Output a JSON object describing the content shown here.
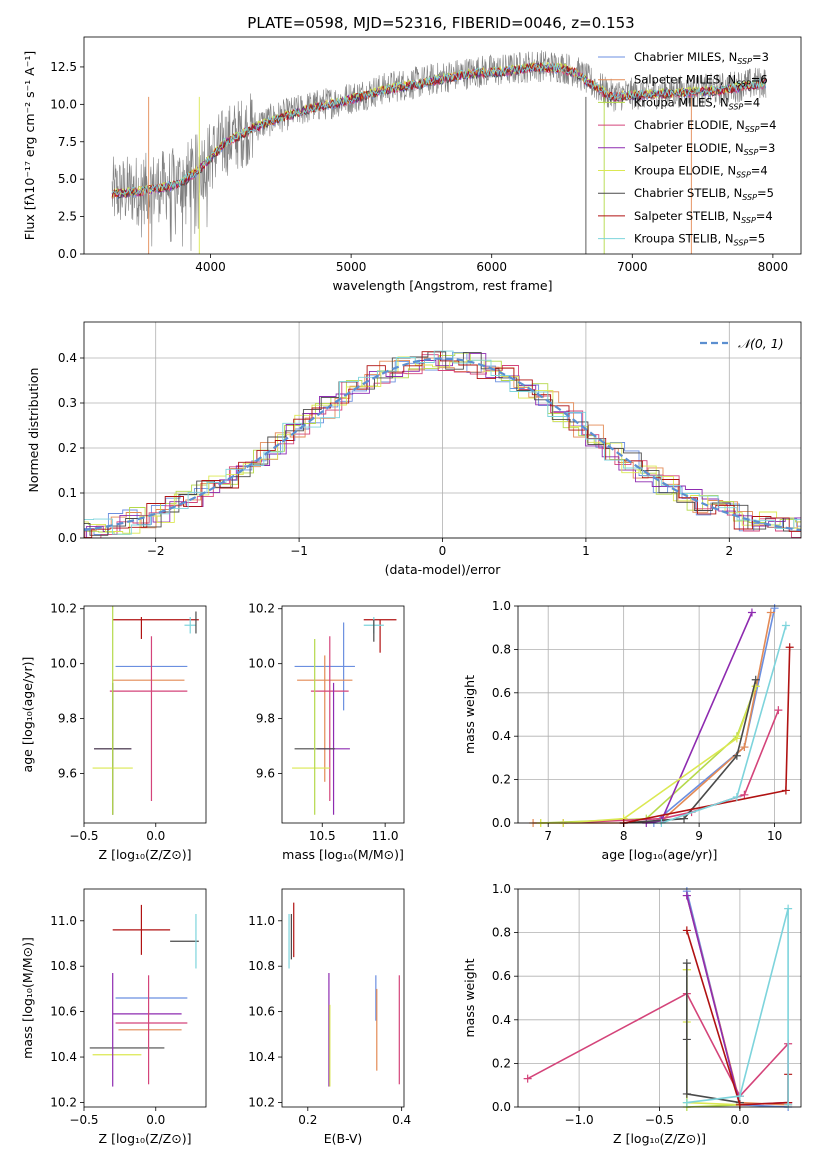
{
  "colors": {
    "Chabrier MILES": "#6b8fe0",
    "Salpeter MILES": "#e38a55",
    "Kroupa MILES": "#b5d94a",
    "Chabrier ELODIE": "#d4447a",
    "Salpeter ELODIE": "#8e2bb0",
    "Kroupa ELODIE": "#dbe852",
    "Chabrier STELIB": "#4a4a4a",
    "Salpeter STELIB": "#b01212",
    "Kroupa STELIB": "#7dd4dc"
  },
  "chart_data": [
    {
      "id": "spectrum",
      "type": "line",
      "title": "PLATE=0598, MJD=52316, FIBERID=0046, z=0.153",
      "xlabel": "wavelength [Angstrom, rest frame]",
      "ylabel": "Flux [fλ10⁻¹⁷ erg cm⁻² s⁻¹ A⁻¹]",
      "xlim": [
        3100,
        8200
      ],
      "ylim": [
        0,
        14.5
      ],
      "xticks": [
        4000,
        5000,
        6000,
        7000,
        8000
      ],
      "yticks": [
        0.0,
        2.5,
        5.0,
        7.5,
        10.0,
        12.5
      ],
      "legend_position": "top-right",
      "legend": [
        {
          "label": "Chabrier MILES, N",
          "sub": "SSP",
          "suffix": "=3"
        },
        {
          "label": "Salpeter MILES, N",
          "sub": "SSP",
          "suffix": "=6"
        },
        {
          "label": "Kroupa MILES, N",
          "sub": "SSP",
          "suffix": "=4"
        },
        {
          "label": "Chabrier ELODIE, N",
          "sub": "SSP",
          "suffix": "=4"
        },
        {
          "label": "Salpeter ELODIE, N",
          "sub": "SSP",
          "suffix": "=3"
        },
        {
          "label": "Kroupa ELODIE, N",
          "sub": "SSP",
          "suffix": "=4"
        },
        {
          "label": "Chabrier STELIB, N",
          "sub": "SSP",
          "suffix": "=5"
        },
        {
          "label": "Salpeter STELIB, N",
          "sub": "SSP",
          "suffix": "=4"
        },
        {
          "label": "Kroupa STELIB, N",
          "sub": "SSP",
          "suffix": "=5"
        }
      ],
      "continuum": [
        [
          3300,
          4.1
        ],
        [
          3500,
          4.3
        ],
        [
          3700,
          4.6
        ],
        [
          3800,
          4.9
        ],
        [
          3950,
          6.0
        ],
        [
          4100,
          7.5
        ],
        [
          4300,
          8.5
        ],
        [
          4500,
          9.2
        ],
        [
          4700,
          9.8
        ],
        [
          4900,
          10.2
        ],
        [
          5100,
          10.7
        ],
        [
          5300,
          11.2
        ],
        [
          5500,
          11.5
        ],
        [
          5700,
          11.9
        ],
        [
          5900,
          12.2
        ],
        [
          6100,
          12.3
        ],
        [
          6300,
          12.6
        ],
        [
          6500,
          12.5
        ],
        [
          6600,
          12.2
        ],
        [
          6700,
          11.5
        ],
        [
          6850,
          10.6
        ],
        [
          7000,
          10.7
        ],
        [
          7200,
          10.8
        ],
        [
          7400,
          10.9
        ],
        [
          7600,
          11.0
        ],
        [
          7800,
          11.3
        ],
        [
          7950,
          11.5
        ]
      ]
    },
    {
      "id": "residuals",
      "type": "histogram",
      "xlabel": "(data-model)/error",
      "ylabel": "Normed distribution",
      "xlim": [
        -2.5,
        2.5
      ],
      "ylim": [
        0,
        0.48
      ],
      "xticks": [
        -2,
        -1,
        0,
        1,
        2
      ],
      "yticks": [
        0.0,
        0.1,
        0.2,
        0.3,
        0.4
      ],
      "grid": true,
      "legend_position": "top-right",
      "legend": [
        "𝒩(0, 1)"
      ],
      "gaussian": {
        "mu": 0,
        "sigma": 1
      }
    },
    {
      "id": "age_vs_Z",
      "type": "errorbar",
      "xlabel": "Z [log₁₀(Z/Z⊙)]",
      "ylabel": "age  [log₁₀(age/yr)]",
      "xlim": [
        -0.5,
        0.35
      ],
      "ylim": [
        9.42,
        10.21
      ],
      "xticks": [
        -0.5,
        0.0
      ],
      "yticks": [
        9.6,
        9.8,
        10.0,
        10.2
      ],
      "points": [
        {
          "m": "Chabrier MILES",
          "x": -0.03,
          "xe": 0.25,
          "y": 9.99,
          "ye": 0.0
        },
        {
          "m": "Salpeter MILES",
          "x": -0.05,
          "xe": 0.25,
          "y": 9.94,
          "ye": 0.0
        },
        {
          "m": "Chabrier ELODIE",
          "x": -0.05,
          "xe": 0.27,
          "y": 9.9,
          "ye": 0.0
        },
        {
          "m": "Salpeter ELODIE",
          "x": -0.3,
          "xe": 0.13,
          "y": 9.69,
          "ye": 0.0
        },
        {
          "m": "Chabrier STELIB",
          "x": -0.3,
          "xe": 0.13,
          "y": 9.69,
          "ye": 0.24
        },
        {
          "m": "Kroupa ELODIE",
          "x": -0.3,
          "xe": 0.14,
          "y": 9.62,
          "ye": 0.0
        },
        {
          "m": "Salpeter STELIB",
          "x": 0.0,
          "xe": 0.3,
          "y": 10.16,
          "ye": 0.0
        },
        {
          "m": "Kroupa STELIB",
          "x": 0.24,
          "xe": 0.04,
          "y": 10.14,
          "ye": 0.03
        },
        {
          "m": "Chabrier STELIB",
          "x": 0.28,
          "xe": 0.0,
          "y": 10.15,
          "ye": 0.04
        },
        {
          "m": "Chabrier ELODIE",
          "x": -0.03,
          "xe": 0.0,
          "y": 9.8,
          "ye": 0.3
        },
        {
          "m": "Salpeter STELIB",
          "x": -0.1,
          "xe": 0.0,
          "y": 10.13,
          "ye": 0.04
        },
        {
          "m": "Kroupa MILES",
          "x": -0.3,
          "xe": 0.0,
          "y": 9.83,
          "ye": 0.38
        }
      ]
    },
    {
      "id": "age_vs_mass",
      "type": "errorbar",
      "xlabel": "mass [log₁₀(M/M⊙)]",
      "ylabel": "",
      "xlim": [
        10.18,
        11.15
      ],
      "ylim": [
        9.42,
        10.21
      ],
      "xticks": [
        10.5,
        11.0
      ],
      "yticks": [
        9.6,
        9.8,
        10.0,
        10.2
      ],
      "points": [
        {
          "m": "Chabrier MILES",
          "x": 10.52,
          "xe": 0.24,
          "y": 9.99,
          "ye": 0.0
        },
        {
          "m": "Chabrier MILES",
          "x": 10.67,
          "xe": 0.0,
          "y": 9.99,
          "ye": 0.16
        },
        {
          "m": "Salpeter MILES",
          "x": 10.52,
          "xe": 0.22,
          "y": 9.94,
          "ye": 0.0
        },
        {
          "m": "Salpeter MILES",
          "x": 10.52,
          "xe": 0.0,
          "y": 9.8,
          "ye": 0.23
        },
        {
          "m": "Chabrier ELODIE",
          "x": 10.56,
          "xe": 0.15,
          "y": 9.9,
          "ye": 0.0
        },
        {
          "m": "Chabrier ELODIE",
          "x": 10.56,
          "xe": 0.0,
          "y": 9.8,
          "ye": 0.3
        },
        {
          "m": "Salpeter ELODIE",
          "x": 10.59,
          "xe": 0.13,
          "y": 9.69,
          "ye": 0.0
        },
        {
          "m": "Salpeter ELODIE",
          "x": 10.59,
          "xe": 0.0,
          "y": 9.69,
          "ye": 0.24
        },
        {
          "m": "Chabrier STELIB",
          "x": 10.44,
          "xe": 0.16,
          "y": 9.69,
          "ye": 0.0
        },
        {
          "m": "Kroupa ELODIE",
          "x": 10.41,
          "xe": 0.15,
          "y": 9.62,
          "ye": 0.0
        },
        {
          "m": "Kroupa MILES",
          "x": 10.44,
          "xe": 0.0,
          "y": 9.77,
          "ye": 0.32
        },
        {
          "m": "Salpeter STELIB",
          "x": 10.96,
          "xe": 0.13,
          "y": 10.16,
          "ye": 0.0
        },
        {
          "m": "Salpeter STELIB",
          "x": 10.96,
          "xe": 0.0,
          "y": 10.1,
          "ye": 0.06
        },
        {
          "m": "Kroupa STELIB",
          "x": 10.91,
          "xe": 0.08,
          "y": 10.14,
          "ye": 0.03
        },
        {
          "m": "Chabrier STELIB",
          "x": 10.91,
          "xe": 0.0,
          "y": 10.12,
          "ye": 0.04
        }
      ]
    },
    {
      "id": "mw_vs_age",
      "type": "line",
      "xlabel": "age  [log₁₀(age/yr)]",
      "ylabel": "mass weight",
      "xlim": [
        6.6,
        10.35
      ],
      "ylim": [
        0,
        1.0
      ],
      "xticks": [
        7,
        8,
        9,
        10
      ],
      "yticks": [
        0.0,
        0.2,
        0.4,
        0.6,
        0.8,
        1.0
      ],
      "grid": true,
      "series": [
        {
          "m": "Chabrier MILES",
          "x": [
            8.4,
            9.6,
            10.0
          ],
          "y": [
            0.0,
            0.35,
            0.99
          ]
        },
        {
          "m": "Salpeter MILES",
          "x": [
            6.8,
            8.0,
            8.5,
            9.6,
            9.95
          ],
          "y": [
            0.0,
            0.0,
            0.01,
            0.35,
            0.97
          ]
        },
        {
          "m": "Kroupa MILES",
          "x": [
            6.9,
            8.3,
            9.5,
            9.75
          ],
          "y": [
            0.0,
            0.02,
            0.4,
            0.63
          ]
        },
        {
          "m": "Chabrier ELODIE",
          "x": [
            7.2,
            8.5,
            8.9,
            9.6,
            10.05
          ],
          "y": [
            0.0,
            0.02,
            0.05,
            0.13,
            0.52
          ]
        },
        {
          "m": "Salpeter ELODIE",
          "x": [
            8.3,
            8.5,
            9.7
          ],
          "y": [
            0.0,
            0.01,
            0.97
          ]
        },
        {
          "m": "Kroupa ELODIE",
          "x": [
            6.9,
            7.2,
            8.0,
            9.5,
            9.75
          ],
          "y": [
            0.0,
            0.0,
            0.02,
            0.39,
            0.63
          ]
        },
        {
          "m": "Chabrier STELIB",
          "x": [
            8.0,
            8.8,
            9.5,
            9.75
          ],
          "y": [
            0.0,
            0.02,
            0.31,
            0.66
          ]
        },
        {
          "m": "Salpeter STELIB",
          "x": [
            8.0,
            10.15,
            10.2
          ],
          "y": [
            0.0,
            0.15,
            0.81
          ]
        },
        {
          "m": "Kroupa STELIB",
          "x": [
            8.5,
            9.5,
            10.15
          ],
          "y": [
            0.0,
            0.12,
            0.91
          ]
        }
      ]
    },
    {
      "id": "mass_vs_Z",
      "type": "errorbar",
      "xlabel": "Z [log₁₀(Z/Z⊙)]",
      "ylabel": "mass [log₁₀(M/M⊙)]",
      "xlim": [
        -0.5,
        0.35
      ],
      "ylim": [
        10.18,
        11.14
      ],
      "xticks": [
        -0.5,
        0.0
      ],
      "yticks": [
        10.2,
        10.4,
        10.6,
        10.8,
        11.0
      ],
      "points": [
        {
          "m": "Salpeter STELIB",
          "x": -0.1,
          "xe": 0.2,
          "y": 10.96,
          "ye": 0.11
        },
        {
          "m": "Chabrier STELIB",
          "x": 0.2,
          "xe": 0.1,
          "y": 10.91,
          "ye": 0.0
        },
        {
          "m": "Kroupa STELIB",
          "x": 0.28,
          "xe": 0.0,
          "y": 10.91,
          "ye": 0.12
        },
        {
          "m": "Chabrier MILES",
          "x": -0.03,
          "xe": 0.25,
          "y": 10.66,
          "ye": 0.0
        },
        {
          "m": "Salpeter ELODIE",
          "x": -0.06,
          "xe": 0.24,
          "y": 10.59,
          "ye": 0.0
        },
        {
          "m": "Chabrier ELODIE",
          "x": -0.03,
          "xe": 0.25,
          "y": 10.55,
          "ye": 0.0
        },
        {
          "m": "Salpeter MILES",
          "x": -0.04,
          "xe": 0.22,
          "y": 10.52,
          "ye": 0.0
        },
        {
          "m": "Chabrier STELIB",
          "x": -0.2,
          "xe": 0.26,
          "y": 10.44,
          "ye": 0.0
        },
        {
          "m": "Kroupa ELODIE",
          "x": -0.27,
          "xe": 0.17,
          "y": 10.41,
          "ye": 0.0
        },
        {
          "m": "Salpeter ELODIE",
          "x": -0.3,
          "xe": 0.0,
          "y": 10.52,
          "ye": 0.25
        },
        {
          "m": "Chabrier ELODIE",
          "x": -0.05,
          "xe": 0.0,
          "y": 10.52,
          "ye": 0.24
        }
      ]
    },
    {
      "id": "mass_vs_ebv",
      "type": "errorbar",
      "xlabel": "E(B-V)",
      "ylabel": "",
      "xlim": [
        0.145,
        0.405
      ],
      "ylim": [
        10.18,
        11.14
      ],
      "xticks": [
        0.2,
        0.4
      ],
      "yticks": [
        10.2,
        10.4,
        10.6,
        10.8,
        11.0
      ],
      "points": [
        {
          "m": "Salpeter STELIB",
          "x": 0.17,
          "xe": 0.0,
          "y": 10.96,
          "ye": 0.12
        },
        {
          "m": "Kroupa STELIB",
          "x": 0.16,
          "xe": 0.0,
          "y": 10.91,
          "ye": 0.12
        },
        {
          "m": "Chabrier STELIB",
          "x": 0.165,
          "xe": 0.0,
          "y": 10.93,
          "ye": 0.1
        },
        {
          "m": "Salpeter ELODIE",
          "x": 0.245,
          "xe": 0.0,
          "y": 10.52,
          "ye": 0.25
        },
        {
          "m": "Kroupa ELODIE",
          "x": 0.247,
          "xe": 0.0,
          "y": 10.45,
          "ye": 0.18
        },
        {
          "m": "Chabrier MILES",
          "x": 0.345,
          "xe": 0.0,
          "y": 10.66,
          "ye": 0.1
        },
        {
          "m": "Salpeter MILES",
          "x": 0.347,
          "xe": 0.0,
          "y": 10.52,
          "ye": 0.18
        },
        {
          "m": "Chabrier ELODIE",
          "x": 0.395,
          "xe": 0.0,
          "y": 10.52,
          "ye": 0.24
        }
      ]
    },
    {
      "id": "mw_vs_Z",
      "type": "line",
      "xlabel": "Z [log₁₀(Z/Z⊙)]",
      "ylabel": "mass weight",
      "xlim": [
        -1.38,
        0.38
      ],
      "ylim": [
        0,
        1.0
      ],
      "xticks": [
        -1.0,
        -0.5,
        0.0
      ],
      "yticks": [
        0.0,
        0.2,
        0.4,
        0.6,
        0.8,
        1.0
      ],
      "grid": true,
      "series": [
        {
          "m": "Chabrier MILES",
          "x": [
            -0.33,
            0.0,
            0.3
          ],
          "y": [
            0.99,
            0.01,
            0.0
          ]
        },
        {
          "m": "Salpeter MILES",
          "x": [
            -0.33,
            0.0,
            0.3
          ],
          "y": [
            0.97,
            0.02,
            0.01
          ]
        },
        {
          "m": "Kroupa MILES",
          "x": [
            -0.33,
            -0.33,
            0.0
          ],
          "y": [
            0.63,
            0.0,
            0.01
          ]
        },
        {
          "m": "Chabrier ELODIE",
          "x": [
            -1.32,
            -0.33,
            0.0,
            0.3,
            0.3
          ],
          "y": [
            0.13,
            0.52,
            0.05,
            0.29,
            0.02
          ]
        },
        {
          "m": "Salpeter ELODIE",
          "x": [
            -0.33,
            0.0,
            0.3
          ],
          "y": [
            0.97,
            0.01,
            0.02
          ]
        },
        {
          "m": "Kroupa ELODIE",
          "x": [
            -0.33,
            -0.33,
            -0.33,
            0.0
          ],
          "y": [
            0.63,
            0.39,
            0.02,
            0.01
          ]
        },
        {
          "m": "Chabrier STELIB",
          "x": [
            -0.33,
            -0.33,
            -0.33,
            0.0
          ],
          "y": [
            0.66,
            0.31,
            0.06,
            0.02
          ]
        },
        {
          "m": "Salpeter STELIB",
          "x": [
            -0.33,
            0.0,
            0.3,
            0.3
          ],
          "y": [
            0.81,
            0.01,
            0.02,
            0.15
          ]
        },
        {
          "m": "Kroupa STELIB",
          "x": [
            -0.33,
            0.0,
            0.3,
            0.3
          ],
          "y": [
            0.02,
            0.05,
            0.91,
            0.01
          ]
        }
      ]
    }
  ]
}
